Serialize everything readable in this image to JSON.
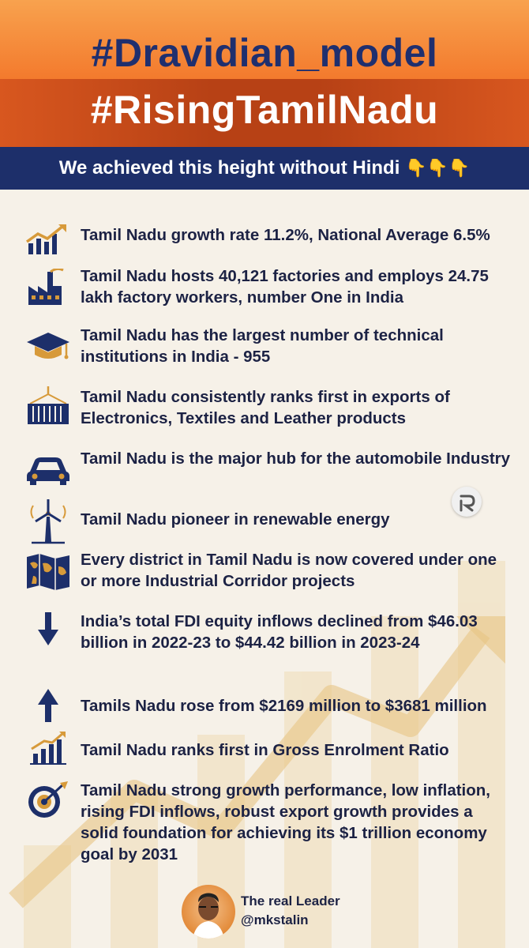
{
  "header": {
    "title_1": "#Dravidian_model",
    "title_2": "#RisingTamilNadu",
    "subtitle": "We achieved this height without Hindi",
    "subtitle_emoji": "👇👇👇"
  },
  "items": [
    {
      "icon": "growth-chart-icon",
      "text": "Tamil Nadu growth rate 11.2%, National Average 6.5%"
    },
    {
      "icon": "factory-icon",
      "text": "Tamil Nadu hosts 40,121 factories and employs 24.75 lakh factory workers, number One in India"
    },
    {
      "icon": "graduation-cap-icon",
      "text": "Tamil Nadu has the largest number of technical institutions in India - 955"
    },
    {
      "icon": "shipping-container-icon",
      "text": "Tamil Nadu consistently ranks first in exports of Electronics, Textiles and Leather products"
    },
    {
      "icon": "car-icon",
      "text": "Tamil Nadu is the major hub for the automobile Industry"
    },
    {
      "icon": "wind-turbine-icon",
      "text": "Tamil Nadu pioneer in renewable energy"
    },
    {
      "icon": "world-map-icon",
      "text": "Every district in Tamil Nadu is now covered under one or more Industrial Corridor projects"
    },
    {
      "icon": "arrow-down-icon",
      "text": "India’s total FDI equity inflows declined from $46.03 billion in 2022-23 to $44.42 billion in 2023-24"
    },
    {
      "icon": "arrow-up-icon",
      "text": "Tamils Nadu rose from $2169 million to $3681 million"
    },
    {
      "icon": "bar-chart-icon",
      "text": "Tamil Nadu ranks first in Gross Enrolment Ratio"
    },
    {
      "icon": "target-icon",
      "text": "Tamil Nadu strong growth performance, low inflation, rising FDI inflows, robust export growth provides a solid foundation for achieving its $1 trillion economy goal by 2031"
    }
  ],
  "footer": {
    "label": "The real Leader",
    "handle": "@mkstalin"
  },
  "colors": {
    "navy": "#1d2f6a",
    "orange": "#f37a2d",
    "gold": "#d79a3a"
  }
}
